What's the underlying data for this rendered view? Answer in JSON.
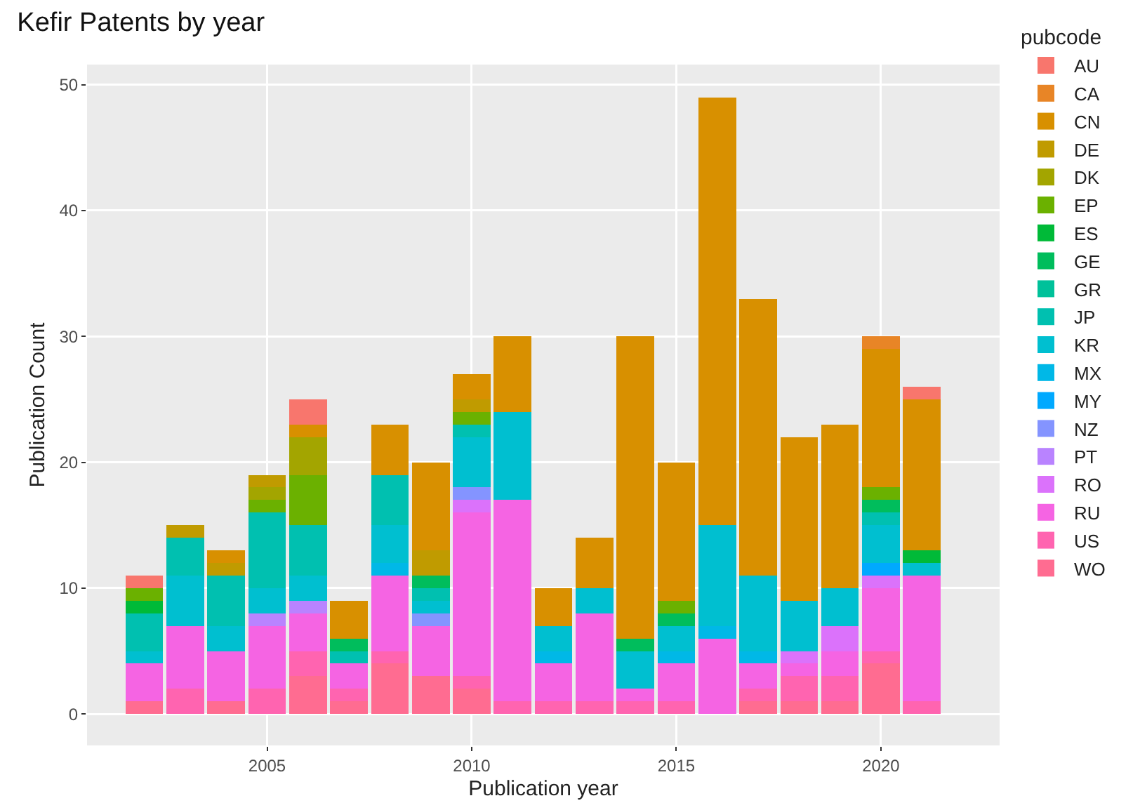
{
  "chart_data": {
    "type": "bar",
    "stacked": true,
    "title": "Kefir Patents by year",
    "xlabel": "Publication year",
    "ylabel": "Publication Count",
    "legend_title": "pubcode",
    "legend": "right",
    "grid": true,
    "x": [
      2002,
      2003,
      2004,
      2005,
      2006,
      2007,
      2008,
      2009,
      2010,
      2011,
      2012,
      2013,
      2014,
      2015,
      2016,
      2017,
      2018,
      2019,
      2020,
      2021
    ],
    "xlim": [
      2000.6,
      2022.9
    ],
    "xticks": [
      2005,
      2010,
      2015,
      2020
    ],
    "ylim": [
      -2.5,
      51.6
    ],
    "yticks": [
      0,
      10,
      20,
      30,
      40,
      50
    ],
    "series": [
      {
        "name": "WO",
        "color": "#FF6C91",
        "values": [
          1,
          null,
          1,
          null,
          3,
          1,
          4,
          3,
          2,
          null,
          null,
          null,
          null,
          null,
          null,
          1,
          1,
          1,
          4,
          null
        ]
      },
      {
        "name": "US",
        "color": "#FF64B0",
        "values": [
          null,
          2,
          null,
          2,
          2,
          1,
          1,
          null,
          1,
          1,
          1,
          1,
          1,
          1,
          null,
          1,
          2,
          2,
          1,
          1
        ]
      },
      {
        "name": "RU",
        "color": "#F564E3",
        "values": [
          3,
          5,
          4,
          5,
          3,
          2,
          6,
          4,
          13,
          16,
          3,
          7,
          1,
          3,
          6,
          2,
          1,
          2,
          5,
          10
        ]
      },
      {
        "name": "RO",
        "color": "#DB72FB",
        "values": [
          null,
          null,
          null,
          null,
          null,
          null,
          null,
          null,
          1,
          null,
          null,
          null,
          null,
          null,
          null,
          null,
          1,
          2,
          1,
          null
        ]
      },
      {
        "name": "PT",
        "color": "#B983FF",
        "values": [
          null,
          null,
          null,
          1,
          1,
          null,
          null,
          null,
          null,
          null,
          null,
          null,
          null,
          null,
          null,
          null,
          null,
          null,
          null,
          null
        ]
      },
      {
        "name": "NZ",
        "color": "#8494FF",
        "values": [
          null,
          null,
          null,
          null,
          null,
          null,
          null,
          1,
          1,
          null,
          null,
          null,
          null,
          null,
          null,
          null,
          null,
          null,
          null,
          null
        ]
      },
      {
        "name": "MY",
        "color": "#00A9FF",
        "values": [
          null,
          null,
          null,
          null,
          null,
          null,
          null,
          null,
          null,
          null,
          null,
          null,
          null,
          null,
          null,
          null,
          null,
          null,
          1,
          null
        ]
      },
      {
        "name": "MX",
        "color": "#00B8E7",
        "values": [
          null,
          null,
          null,
          null,
          null,
          null,
          1,
          null,
          null,
          null,
          1,
          null,
          null,
          1,
          1,
          1,
          null,
          null,
          null,
          null
        ]
      },
      {
        "name": "KR",
        "color": "#00BFD0",
        "values": [
          1,
          4,
          2,
          2,
          2,
          null,
          3,
          1,
          4,
          7,
          2,
          2,
          3,
          2,
          8,
          6,
          4,
          3,
          3,
          1
        ]
      },
      {
        "name": "JP",
        "color": "#00C0B0",
        "values": [
          3,
          3,
          4,
          6,
          4,
          1,
          4,
          1,
          1,
          null,
          null,
          null,
          null,
          null,
          null,
          null,
          null,
          null,
          1,
          null
        ]
      },
      {
        "name": "GR",
        "color": "#00C19A",
        "values": [
          null,
          null,
          null,
          null,
          null,
          null,
          null,
          null,
          null,
          null,
          null,
          null,
          null,
          null,
          null,
          null,
          null,
          null,
          null,
          null
        ]
      },
      {
        "name": "GE",
        "color": "#00BD5C",
        "values": [
          null,
          null,
          null,
          null,
          null,
          1,
          null,
          1,
          null,
          null,
          null,
          null,
          1,
          1,
          null,
          null,
          null,
          null,
          1,
          null
        ]
      },
      {
        "name": "ES",
        "color": "#00BA38",
        "values": [
          1,
          null,
          null,
          null,
          null,
          null,
          null,
          null,
          null,
          null,
          null,
          null,
          null,
          null,
          null,
          null,
          null,
          null,
          null,
          1
        ]
      },
      {
        "name": "EP",
        "color": "#6BB100",
        "values": [
          1,
          null,
          null,
          1,
          4,
          null,
          null,
          null,
          1,
          null,
          null,
          null,
          null,
          1,
          null,
          null,
          null,
          null,
          1,
          null
        ]
      },
      {
        "name": "DK",
        "color": "#A3A500",
        "values": [
          null,
          null,
          null,
          1,
          3,
          null,
          null,
          null,
          null,
          null,
          null,
          null,
          null,
          null,
          null,
          null,
          null,
          null,
          null,
          null
        ]
      },
      {
        "name": "DE",
        "color": "#C09B00",
        "values": [
          null,
          1,
          1,
          1,
          null,
          null,
          null,
          2,
          1,
          null,
          null,
          null,
          null,
          null,
          null,
          null,
          null,
          null,
          null,
          null
        ]
      },
      {
        "name": "CN",
        "color": "#D89000",
        "values": [
          null,
          null,
          1,
          null,
          1,
          3,
          4,
          7,
          2,
          6,
          3,
          4,
          24,
          11,
          34,
          22,
          13,
          13,
          11,
          12
        ]
      },
      {
        "name": "CA",
        "color": "#E88526",
        "values": [
          null,
          null,
          null,
          null,
          null,
          null,
          null,
          null,
          null,
          null,
          null,
          null,
          null,
          null,
          null,
          null,
          null,
          null,
          1,
          null
        ]
      },
      {
        "name": "AU",
        "color": "#F8766D",
        "values": [
          1,
          null,
          null,
          null,
          2,
          null,
          null,
          null,
          null,
          null,
          null,
          null,
          null,
          null,
          null,
          null,
          null,
          null,
          null,
          1
        ]
      }
    ]
  }
}
